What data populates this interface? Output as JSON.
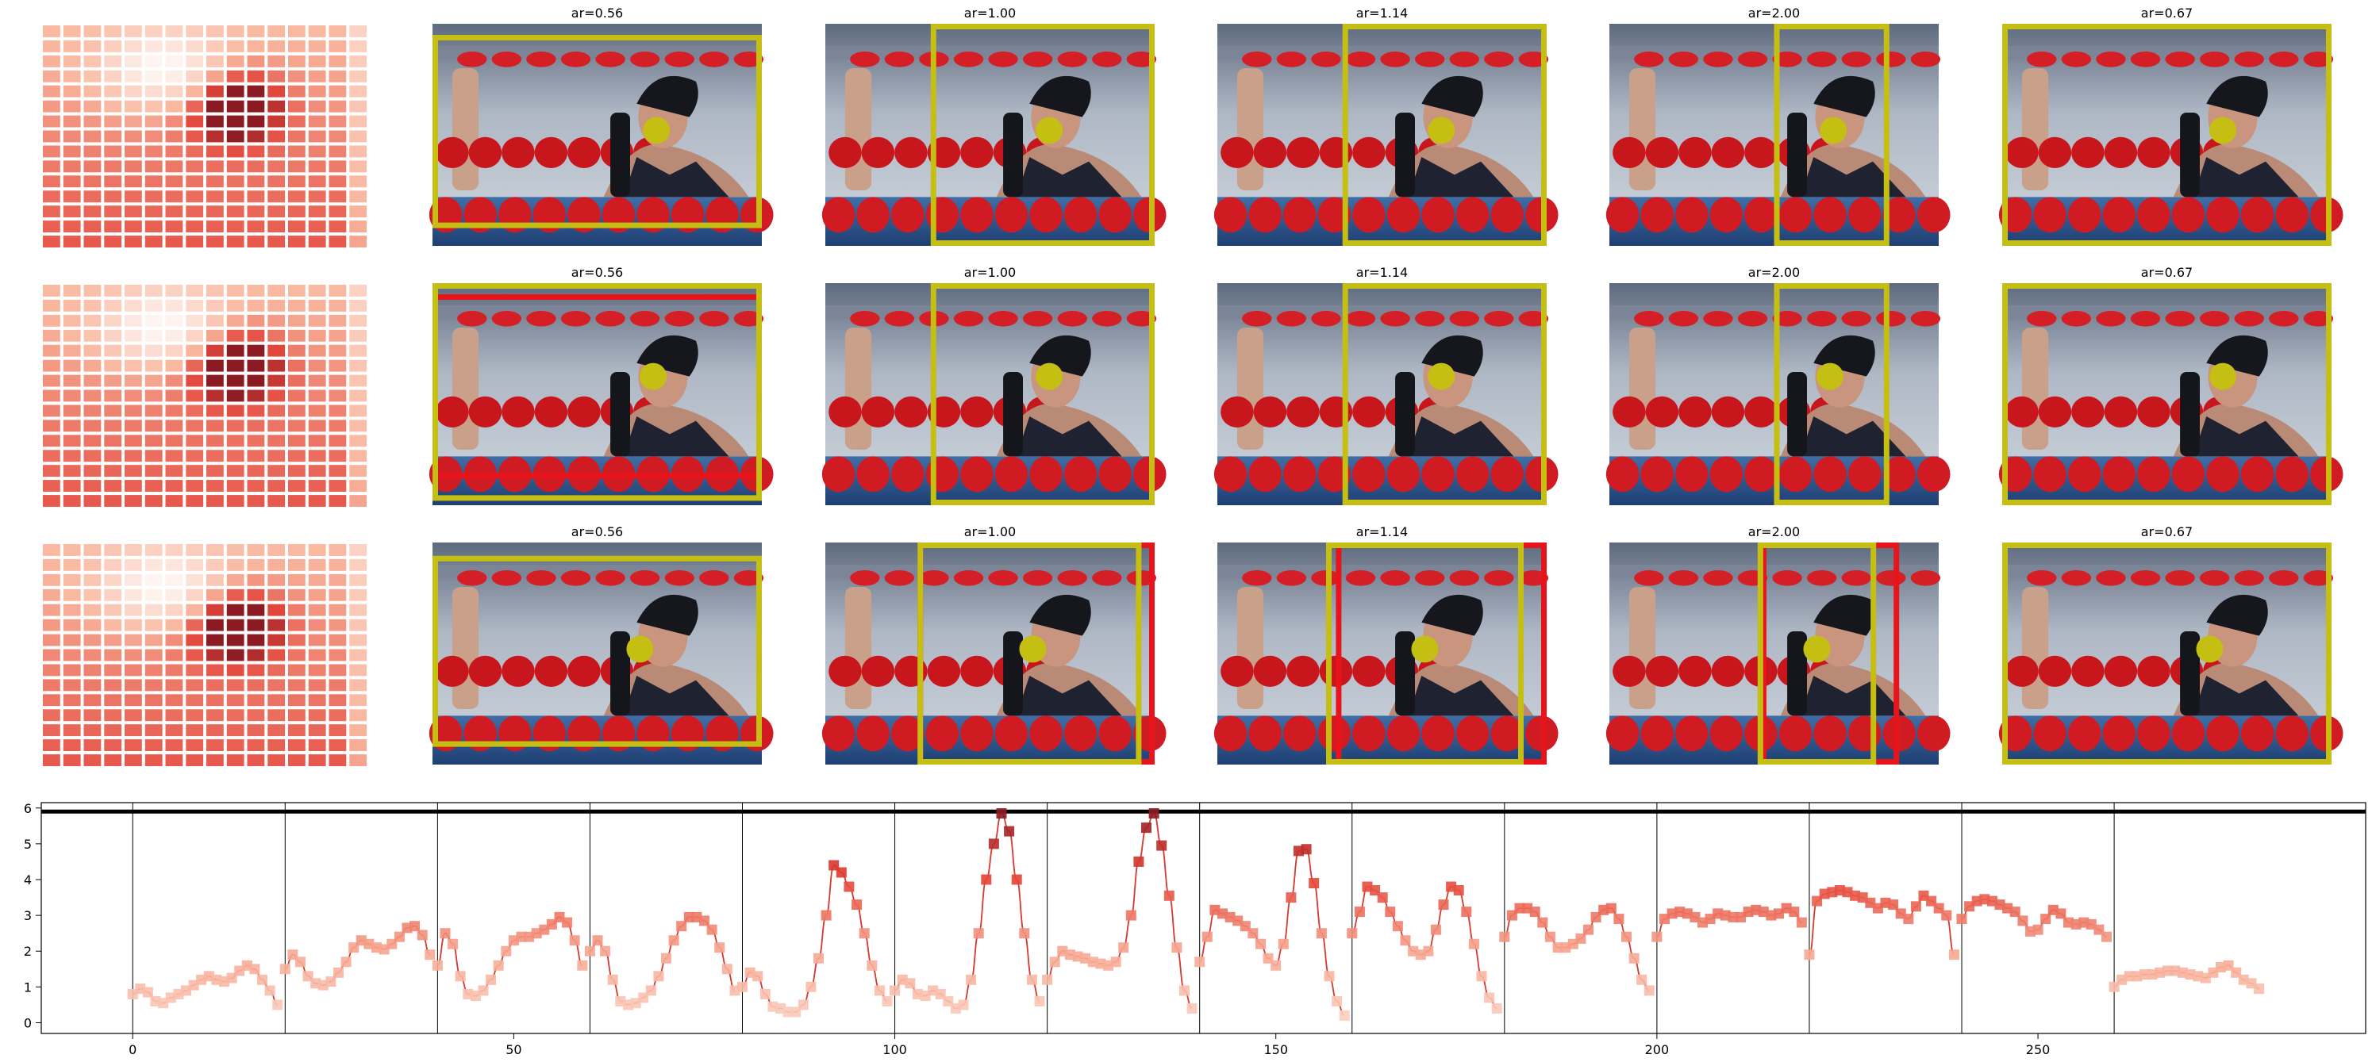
{
  "panel_titles": [
    "ar=0.56",
    "ar=1.00",
    "ar=1.14",
    "ar=2.00",
    "ar=0.67"
  ],
  "colors": {
    "box_primary": "#c4bf12",
    "box_secondary": "#e8141c",
    "keypoint": "#c4bf12",
    "heat_low": "#fde3d8",
    "heat_high": "#8b1a22",
    "line": "#d63a2f"
  },
  "image_rows": [
    {
      "heatmap": "heatmap-1"
    },
    {
      "heatmap": "heatmap-2"
    },
    {
      "heatmap": "heatmap-3"
    }
  ],
  "chart_data": {
    "type": "line",
    "xlim": [
      -12,
      293
    ],
    "ylim": [
      -0.3,
      6.15
    ],
    "xticks": [
      0,
      50,
      100,
      150,
      200,
      250
    ],
    "yticks": [
      0,
      1,
      2,
      3,
      4,
      5,
      6
    ],
    "vlines": [
      0,
      20,
      40,
      60,
      80,
      100,
      120,
      140,
      160,
      180,
      200,
      220,
      240,
      260
    ],
    "hline": 5.9,
    "grid": false,
    "series": [
      {
        "segments": [
          {
            "x0": 0,
            "y": [
              0.8,
              0.95,
              0.85,
              0.6,
              0.55,
              0.7,
              0.8,
              0.9,
              1.05,
              1.2,
              1.3,
              1.2,
              1.15,
              1.25,
              1.45,
              1.6,
              1.5,
              1.2,
              0.9,
              0.5
            ]
          },
          {
            "x0": 20,
            "y": [
              1.5,
              1.9,
              1.7,
              1.3,
              1.1,
              1.05,
              1.15,
              1.4,
              1.7,
              2.1,
              2.3,
              2.2,
              2.1,
              2.05,
              2.2,
              2.4,
              2.65,
              2.7,
              2.45,
              1.9
            ]
          },
          {
            "x0": 40,
            "y": [
              1.6,
              2.5,
              2.2,
              1.3,
              0.8,
              0.75,
              0.9,
              1.2,
              1.6,
              2.0,
              2.3,
              2.4,
              2.4,
              2.5,
              2.6,
              2.75,
              2.95,
              2.8,
              2.3,
              1.6
            ]
          },
          {
            "x0": 60,
            "y": [
              2.0,
              2.3,
              2.0,
              1.2,
              0.6,
              0.5,
              0.55,
              0.7,
              0.9,
              1.3,
              1.8,
              2.3,
              2.7,
              2.95,
              2.95,
              2.85,
              2.6,
              2.1,
              1.5,
              0.9
            ]
          },
          {
            "x0": 80,
            "y": [
              1.0,
              1.4,
              1.3,
              0.8,
              0.45,
              0.4,
              0.3,
              0.3,
              0.5,
              1.0,
              1.8,
              3.0,
              4.4,
              4.2,
              3.8,
              3.3,
              2.5,
              1.6,
              0.9,
              0.6
            ]
          },
          {
            "x0": 100,
            "y": [
              0.9,
              1.2,
              1.1,
              0.8,
              0.75,
              0.9,
              0.8,
              0.6,
              0.4,
              0.5,
              1.2,
              2.5,
              4.0,
              5.0,
              5.85,
              5.35,
              4.0,
              2.5,
              1.2,
              0.6
            ]
          },
          {
            "x0": 120,
            "y": [
              1.2,
              1.7,
              2.0,
              1.9,
              1.85,
              1.8,
              1.7,
              1.65,
              1.6,
              1.7,
              2.1,
              3.0,
              4.5,
              5.45,
              5.85,
              4.95,
              3.55,
              2.1,
              0.9,
              0.4
            ]
          },
          {
            "x0": 140,
            "y": [
              1.7,
              2.4,
              3.15,
              3.05,
              2.95,
              2.85,
              2.7,
              2.5,
              2.2,
              1.8,
              1.6,
              2.2,
              3.5,
              4.8,
              4.85,
              3.9,
              2.5,
              1.3,
              0.6,
              0.2
            ]
          },
          {
            "x0": 160,
            "y": [
              2.5,
              3.1,
              3.8,
              3.7,
              3.5,
              3.1,
              2.7,
              2.3,
              2.0,
              1.9,
              2.0,
              2.6,
              3.3,
              3.8,
              3.7,
              3.1,
              2.2,
              1.3,
              0.7,
              0.4
            ]
          },
          {
            "x0": 180,
            "y": [
              2.4,
              3.0,
              3.2,
              3.2,
              3.1,
              2.8,
              2.4,
              2.1,
              2.1,
              2.2,
              2.35,
              2.6,
              2.95,
              3.15,
              3.2,
              2.9,
              2.4,
              1.8,
              1.2,
              0.9
            ]
          },
          {
            "x0": 200,
            "y": [
              2.4,
              2.9,
              3.05,
              3.1,
              3.05,
              2.95,
              2.8,
              2.9,
              3.05,
              3.0,
              2.95,
              2.95,
              3.1,
              3.15,
              3.1,
              3.0,
              3.05,
              3.2,
              3.1,
              2.8
            ]
          },
          {
            "x0": 220,
            "y": [
              1.9,
              3.4,
              3.6,
              3.65,
              3.7,
              3.65,
              3.55,
              3.5,
              3.35,
              3.2,
              3.35,
              3.3,
              3.05,
              2.9,
              3.25,
              3.55,
              3.4,
              3.2,
              3.0,
              1.9
            ]
          },
          {
            "x0": 240,
            "y": [
              2.9,
              3.25,
              3.4,
              3.45,
              3.4,
              3.3,
              3.2,
              3.1,
              2.85,
              2.55,
              2.6,
              2.9,
              3.15,
              3.05,
              2.8,
              2.75,
              2.8,
              2.75,
              2.6,
              2.4
            ]
          },
          {
            "x0": 260,
            "y": [
              1.0,
              1.2,
              1.3,
              1.3,
              1.35,
              1.35,
              1.4,
              1.45,
              1.45,
              1.4,
              1.35,
              1.3,
              1.25,
              1.4,
              1.55,
              1.6,
              1.4,
              1.2,
              1.1,
              0.95
            ]
          }
        ]
      }
    ]
  }
}
